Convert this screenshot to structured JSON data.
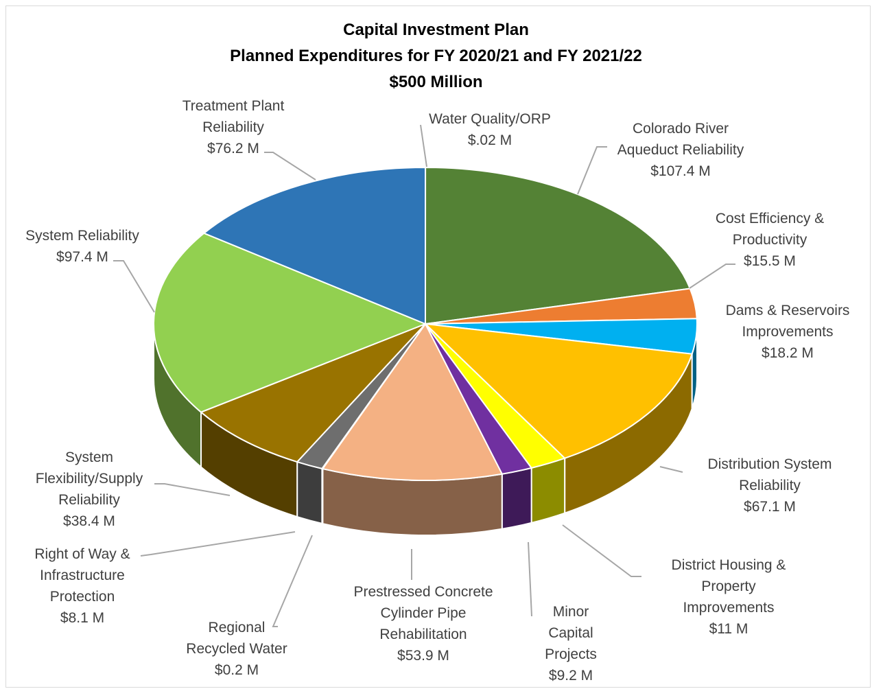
{
  "chart_data": {
    "type": "pie",
    "title": "Capital Investment Plan",
    "subtitle": "Planned Expenditures for FY 2020/21 and FY 2021/22",
    "annotation": "$500 Million",
    "categories": [
      "Water Quality/ORP",
      "Colorado River Aqueduct Reliability",
      "Cost Efficiency & Productivity",
      "Dams & Reservoirs Improvements",
      "Distribution System Reliability",
      "District Housing & Property Improvements",
      "Minor Capital Projects",
      "Prestressed Concrete Cylinder Pipe Rehabilitation",
      "Regional Recycled Water",
      "Right of Way & Infrastructure Protection",
      "System Flexibility/Supply Reliability",
      "System Reliability",
      "Treatment Plant Reliability"
    ],
    "values": [
      0.02,
      107.4,
      15.5,
      18.2,
      67.1,
      11,
      9.2,
      53.9,
      0.2,
      8.1,
      38.4,
      97.4,
      76.2
    ],
    "value_labels": [
      "$.02 M",
      "$107.4 M",
      "$15.5 M",
      "$18.2 M",
      "$67.1 M",
      "$11 M",
      "$9.2 M",
      "$53.9 M",
      "$0.2 M",
      "$8.1 M",
      "$38.4 M",
      "$97.4 M",
      "$76.2 M"
    ],
    "colors": [
      "#7f7f7f",
      "#548235",
      "#ed7d31",
      "#00b0f0",
      "#ffc000",
      "#ffff00",
      "#7030a0",
      "#f4b183",
      "#7f7f7f",
      "#6e6e6e",
      "#997300",
      "#92d050",
      "#2e75b6"
    ]
  }
}
